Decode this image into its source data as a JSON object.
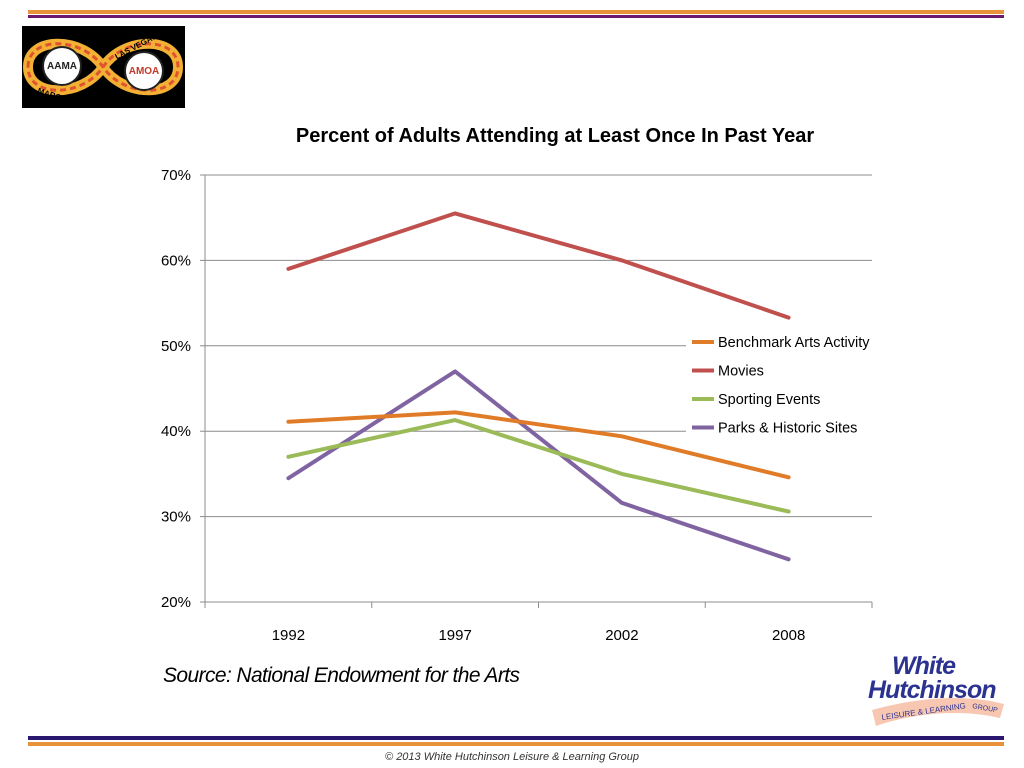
{
  "branding": {
    "left_logo": {
      "badge_1": "AAMA",
      "badge_2": "AMOA",
      "place": "LAS VEGAS, NV",
      "dates": "MARCH 20-22"
    },
    "right_logo": {
      "line1": "White",
      "line2": "Hutchinson",
      "tagline_1": "LEISURE & LEARNING",
      "tagline_2": "GROUP"
    }
  },
  "source_text": "Source: National Endowment for the Arts",
  "footer_text": "© 2013 White Hutchinson Leisure & Learning Group",
  "colors": {
    "rule_orange": "#e8933a",
    "rule_purple": "#6b1a6f",
    "rule_navy": "#2a1870",
    "benchmark": "#e07b27",
    "movies": "#c0504d",
    "sporting": "#9bbb59",
    "parks": "#8064a2",
    "logo_blue": "#2b3290",
    "logo_ribbon": "#f5a48a"
  },
  "chart_data": {
    "type": "line",
    "title": "Percent of Adults Attending at Least Once In Past Year",
    "xlabel": "",
    "ylabel": "",
    "categories": [
      "1992",
      "1997",
      "2002",
      "2008"
    ],
    "ylim": [
      20,
      70
    ],
    "yticks": [
      "20%",
      "30%",
      "40%",
      "50%",
      "60%",
      "70%"
    ],
    "grid": "horizontal",
    "legend_position": "right",
    "series": [
      {
        "name": "Benchmark Arts Activity",
        "color": "#e07b27",
        "values": [
          41.1,
          42.2,
          39.4,
          34.6
        ]
      },
      {
        "name": "Movies",
        "color": "#c0504d",
        "values": [
          59.0,
          65.5,
          60.0,
          53.3
        ]
      },
      {
        "name": "Sporting Events",
        "color": "#9bbb59",
        "values": [
          37.0,
          41.3,
          35.0,
          30.6
        ]
      },
      {
        "name": "Parks & Historic Sites",
        "color": "#8064a2",
        "values": [
          34.5,
          47.0,
          31.6,
          25.0
        ]
      }
    ]
  }
}
